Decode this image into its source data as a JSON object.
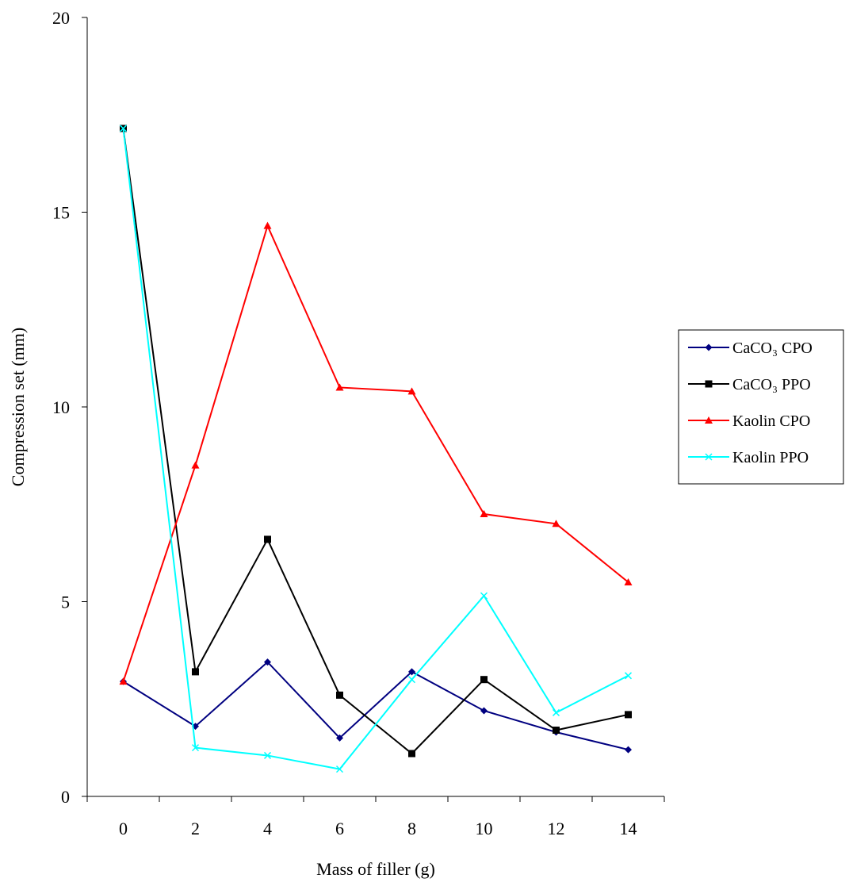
{
  "chart_data": {
    "type": "line",
    "title": "",
    "xlabel": "Mass of filler (g)",
    "ylabel": "Compression set (mm)",
    "x": [
      0,
      2,
      4,
      6,
      8,
      10,
      12,
      14
    ],
    "ylim": [
      0,
      20
    ],
    "yticks": [
      0,
      5,
      10,
      15,
      20
    ],
    "grid": false,
    "legend_position": "right",
    "series": [
      {
        "name": "CaCO₃ CPO",
        "marker": "diamond",
        "color": "#000080",
        "values": [
          2.95,
          1.8,
          3.45,
          1.5,
          3.2,
          2.2,
          1.65,
          1.2
        ]
      },
      {
        "name": "CaCO₃ PPO",
        "marker": "square",
        "color": "#000000",
        "values": [
          17.15,
          3.2,
          6.6,
          2.6,
          1.1,
          3.0,
          1.7,
          2.1
        ]
      },
      {
        "name": "Kaolin CPO",
        "marker": "triangle",
        "color": "#ff0000",
        "values": [
          2.95,
          8.5,
          14.65,
          10.5,
          10.4,
          7.25,
          7.0,
          5.5
        ]
      },
      {
        "name": "Kaolin PPO",
        "marker": "x",
        "color": "#00ffff",
        "values": [
          17.15,
          1.25,
          1.05,
          0.7,
          3.0,
          5.15,
          2.15,
          3.1
        ]
      }
    ]
  }
}
